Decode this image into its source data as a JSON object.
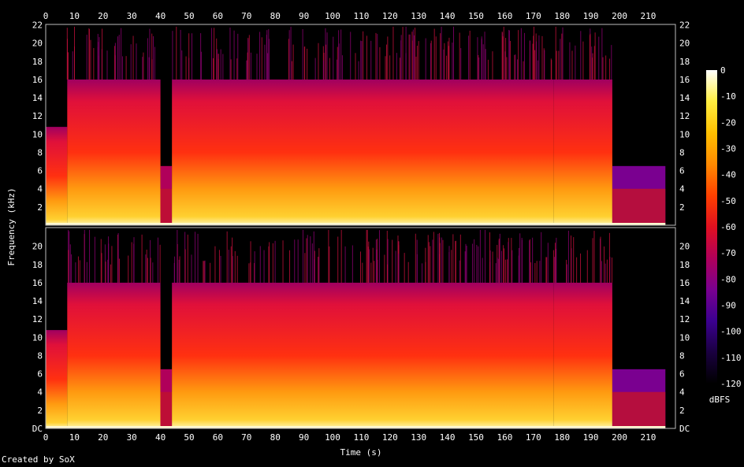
{
  "chart_data": {
    "type": "heatmap",
    "title": "",
    "xlabel": "Time (s)",
    "ylabel": "Frequency (kHz)",
    "colorbar_label": "dBFS",
    "xlim": [
      0,
      219.5
    ],
    "ylim": [
      0,
      22.05
    ],
    "x_ticks": [
      0,
      10,
      20,
      30,
      40,
      50,
      60,
      70,
      80,
      90,
      100,
      110,
      120,
      130,
      140,
      150,
      160,
      170,
      180,
      190,
      200,
      210
    ],
    "y_ticks_top": [
      "2",
      "4",
      "6",
      "8",
      "10",
      "12",
      "14",
      "16",
      "18",
      "20",
      "22"
    ],
    "y_ticks_bottom": [
      "DC",
      "2",
      "4",
      "6",
      "8",
      "10",
      "12",
      "14",
      "16",
      "18",
      "20"
    ],
    "colorbar_ticks": [
      0,
      -10,
      -20,
      -30,
      -40,
      -50,
      -60,
      -70,
      -80,
      -90,
      -100,
      -110,
      -120
    ],
    "colorbar_range": [
      -120,
      0
    ],
    "channels": [
      {
        "channel": 1,
        "segments": [
          {
            "t": [
              0,
              7.5
            ],
            "cutoff_khz": 10.8,
            "level_db": -58
          },
          {
            "t": [
              7.5,
              40
            ],
            "cutoff_khz": 16.0,
            "level_db": -45
          },
          {
            "t": [
              40,
              44
            ],
            "cutoff_khz": 6.5,
            "level_db": -75
          },
          {
            "t": [
              44,
              177
            ],
            "cutoff_khz": 16.0,
            "level_db": -40
          },
          {
            "t": [
              177,
              197.5
            ],
            "cutoff_khz": 16.0,
            "level_db": -52
          },
          {
            "t": [
              197.5,
              216
            ],
            "cutoff_khz": 6.5,
            "level_db": -85
          }
        ]
      },
      {
        "channel": 2,
        "segments": [
          {
            "t": [
              0,
              7.5
            ],
            "cutoff_khz": 10.8,
            "level_db": -58
          },
          {
            "t": [
              7.5,
              40
            ],
            "cutoff_khz": 16.0,
            "level_db": -45
          },
          {
            "t": [
              40,
              44
            ],
            "cutoff_khz": 6.5,
            "level_db": -75
          },
          {
            "t": [
              44,
              177
            ],
            "cutoff_khz": 16.0,
            "level_db": -40
          },
          {
            "t": [
              177,
              197.5
            ],
            "cutoff_khz": 16.0,
            "level_db": -52
          },
          {
            "t": [
              197.5,
              216
            ],
            "cutoff_khz": 6.5,
            "level_db": -85
          }
        ]
      }
    ],
    "palette": [
      "#000000",
      "#1a0040",
      "#3c0090",
      "#7a0090",
      "#b0005a",
      "#e01020",
      "#ff4000",
      "#ff8a00",
      "#ffc000",
      "#ffee40",
      "#ffffff"
    ]
  },
  "footer": {
    "credit": "Created by SoX"
  }
}
